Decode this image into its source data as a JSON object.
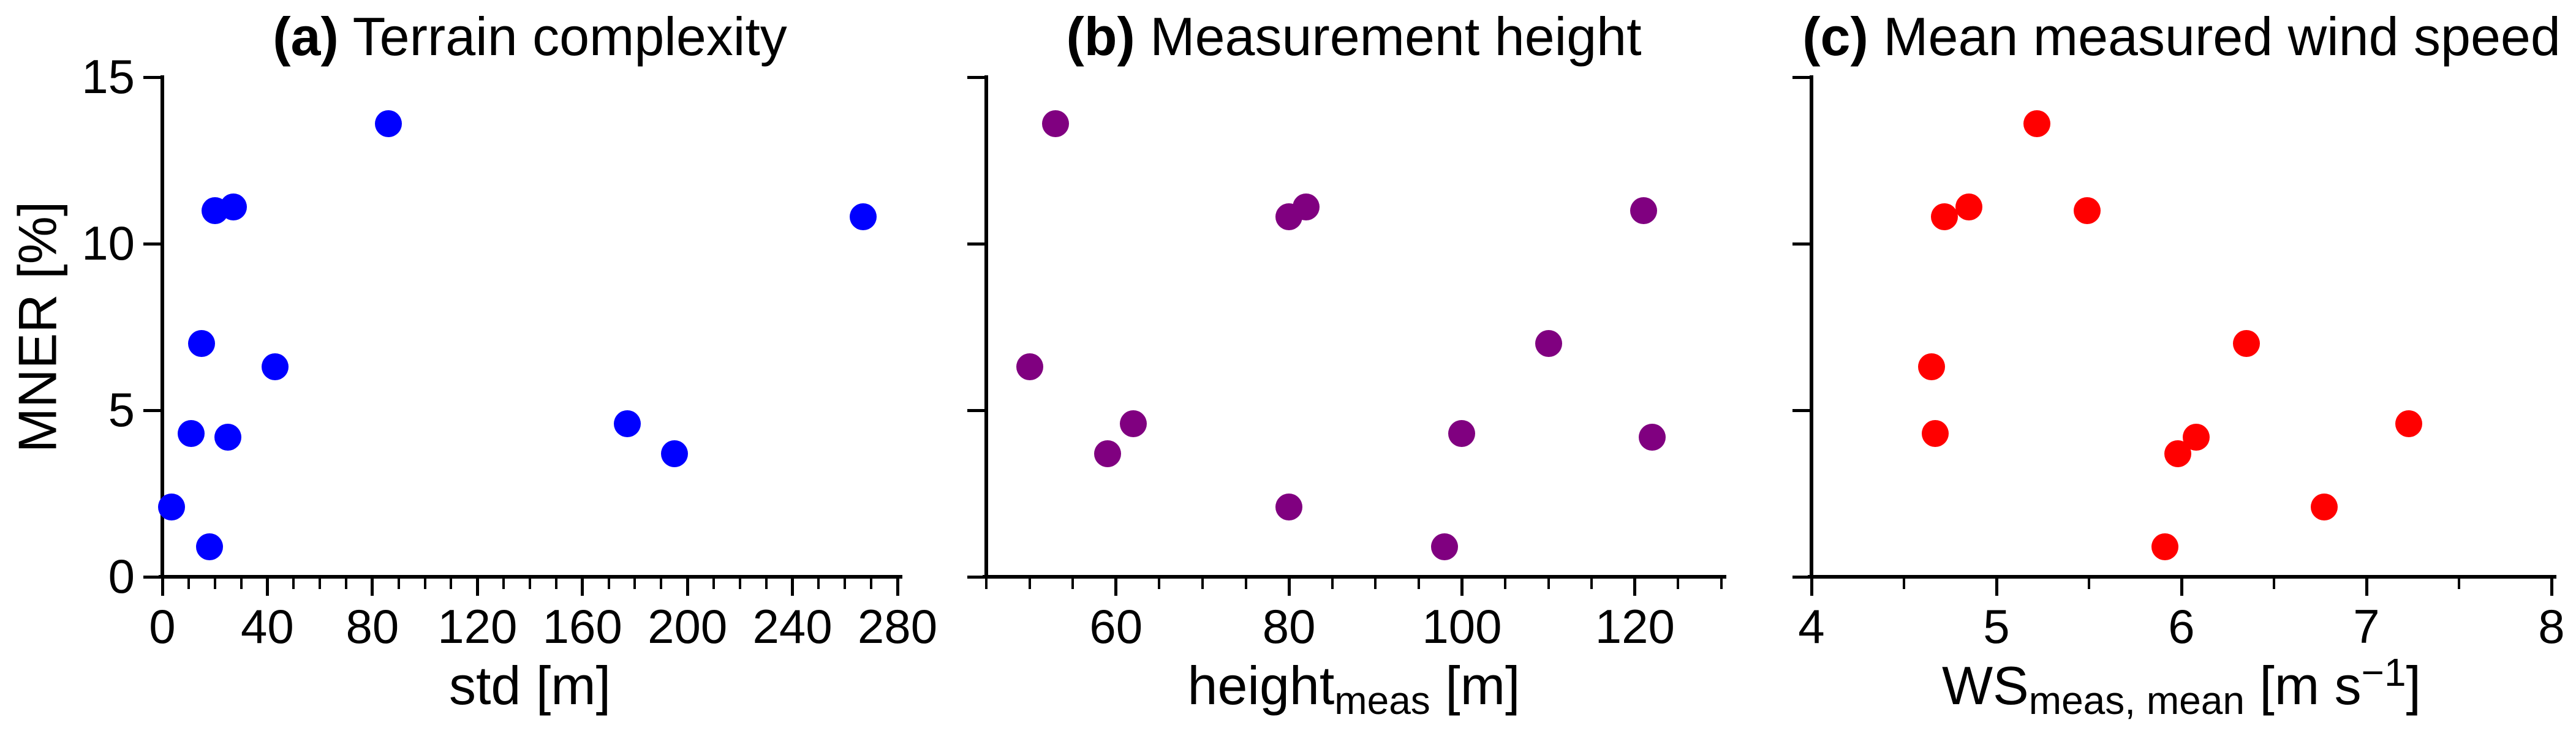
{
  "figure": {
    "ylabel": "MNER [%]",
    "ylim": [
      0,
      15
    ],
    "yticks": [
      0,
      5,
      10,
      15
    ],
    "background": "#ffffff",
    "axis_color": "#000000"
  },
  "chart_data": [
    {
      "id": "a",
      "type": "scatter",
      "title_prefix": "(a)",
      "title": " Terrain complexity",
      "xlabel_parts": [
        {
          "t": "std [m]"
        }
      ],
      "color": "#0000ff",
      "xlim": [
        0,
        280
      ],
      "xticks": [
        0,
        40,
        80,
        120,
        160,
        200,
        240,
        280
      ],
      "xminorticks": [
        10,
        20,
        30,
        50,
        60,
        70,
        90,
        100,
        110,
        130,
        140,
        150,
        170,
        180,
        190,
        210,
        220,
        230,
        250,
        260,
        270
      ],
      "show_ytick_labels": true,
      "points": [
        [
          3.5,
          2.1
        ],
        [
          11,
          4.3
        ],
        [
          15,
          7.0
        ],
        [
          18,
          0.9
        ],
        [
          20,
          11.0
        ],
        [
          25,
          4.2
        ],
        [
          27,
          11.1
        ],
        [
          43,
          6.3
        ],
        [
          86,
          13.6
        ],
        [
          177,
          4.6
        ],
        [
          195,
          3.7
        ],
        [
          267,
          10.8
        ]
      ]
    },
    {
      "id": "b",
      "type": "scatter",
      "title_prefix": "(b)",
      "title": " Measurement height",
      "xlabel_parts": [
        {
          "t": "height"
        },
        {
          "t": "meas",
          "style": "sub"
        },
        {
          "t": " [m]"
        }
      ],
      "color": "#800080",
      "xlim": [
        45,
        130
      ],
      "xticks": [
        60,
        80,
        100,
        120
      ],
      "xminorticks": [
        45,
        50,
        55,
        65,
        70,
        75,
        85,
        90,
        95,
        105,
        110,
        115,
        125,
        130
      ],
      "show_ytick_labels": false,
      "points": [
        [
          50,
          6.3
        ],
        [
          53,
          13.6
        ],
        [
          59,
          3.7
        ],
        [
          62,
          4.6
        ],
        [
          80,
          10.8
        ],
        [
          80,
          2.1
        ],
        [
          82,
          11.1
        ],
        [
          98,
          0.9
        ],
        [
          100,
          4.3
        ],
        [
          110,
          7.0
        ],
        [
          121,
          11.0
        ],
        [
          122,
          4.2
        ]
      ]
    },
    {
      "id": "c",
      "type": "scatter",
      "title_prefix": "(c)",
      "title": " Mean measured wind speed",
      "xlabel_parts": [
        {
          "t": "WS"
        },
        {
          "t": "meas, mean",
          "style": "sub"
        },
        {
          "t": " [m s"
        },
        {
          "t": "−1",
          "style": "sup"
        },
        {
          "t": "]"
        }
      ],
      "color": "#ff0000",
      "xlim": [
        4,
        8
      ],
      "xticks": [
        4,
        5,
        6,
        7,
        8
      ],
      "xminorticks": [
        4.5,
        5.5,
        6.5,
        7.5
      ],
      "show_ytick_labels": false,
      "points": [
        [
          4.65,
          6.3
        ],
        [
          4.67,
          4.3
        ],
        [
          4.72,
          10.8
        ],
        [
          4.85,
          11.1
        ],
        [
          5.22,
          13.6
        ],
        [
          5.49,
          11.0
        ],
        [
          5.91,
          0.9
        ],
        [
          5.98,
          3.7
        ],
        [
          6.08,
          4.2
        ],
        [
          6.35,
          7.0
        ],
        [
          6.77,
          2.1
        ],
        [
          7.23,
          4.6
        ]
      ]
    }
  ]
}
